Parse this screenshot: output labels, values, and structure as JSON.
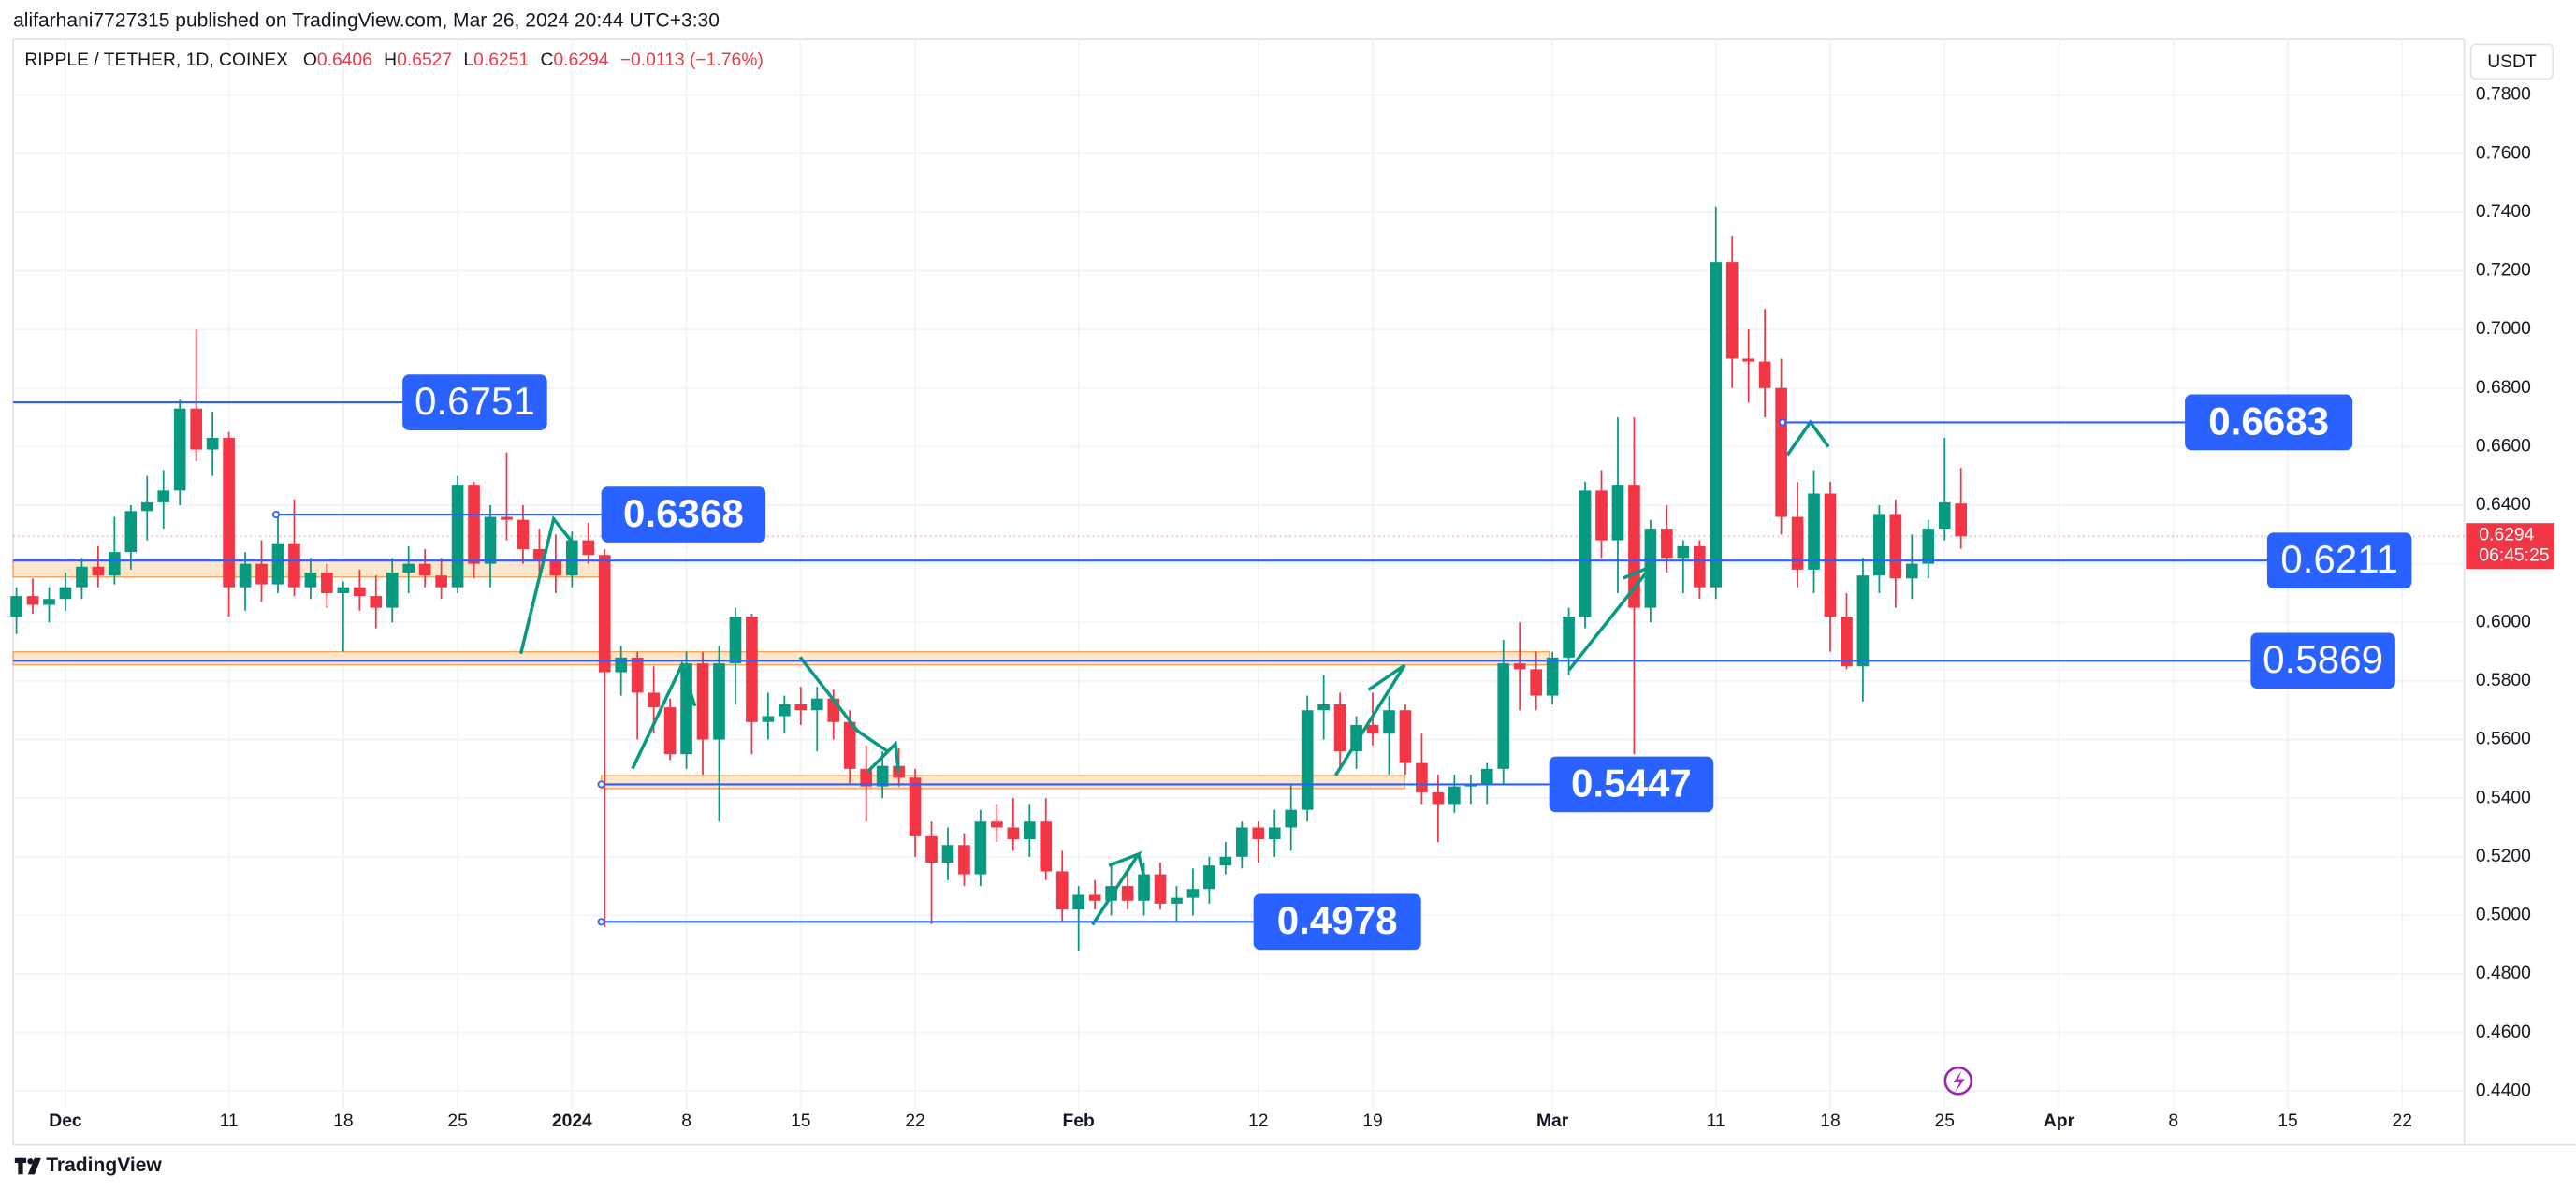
{
  "header": {
    "publisher": "alifarhani7727315 published on TradingView.com, Mar 26, 2024 20:44 UTC+3:30"
  },
  "chart_data": {
    "type": "candlestick",
    "title": "RIPPLE / TETHER, 1D, COINEX",
    "ohlc_labels": [
      "O",
      "H",
      "L",
      "C"
    ],
    "change": "−0.0113 (−1.76%)",
    "currency": "USDT",
    "countdown": "06:45:25",
    "open": [
      0.602,
      0.609,
      0.606,
      0.608,
      0.612,
      0.619,
      0.616,
      0.624,
      0.638,
      0.641,
      0.645,
      0.673,
      0.659,
      0.663,
      0.612,
      0.62,
      0.613,
      0.627,
      0.612,
      0.617,
      0.61,
      0.612,
      0.609,
      0.605,
      0.617,
      0.62,
      0.616,
      0.612,
      0.647,
      0.62,
      0.636,
      0.635,
      0.625,
      0.621,
      0.616,
      0.628,
      0.623,
      0.583,
      0.588,
      0.576,
      0.571,
      0.555,
      0.586,
      0.56,
      0.586,
      0.602,
      0.566,
      0.568,
      0.572,
      0.57,
      0.574,
      0.566,
      0.55,
      0.544,
      0.551,
      0.547,
      0.527,
      0.518,
      0.524,
      0.514,
      0.532,
      0.53,
      0.526,
      0.532,
      0.515,
      0.502,
      0.507,
      0.505,
      0.51,
      0.505,
      0.514,
      0.504,
      0.506,
      0.509,
      0.517,
      0.52,
      0.53,
      0.526,
      0.53,
      0.536,
      0.57,
      0.572,
      0.556,
      0.565,
      0.562,
      0.57,
      0.552,
      0.542,
      0.538,
      0.544,
      0.545,
      0.55,
      0.586,
      0.584,
      0.575,
      0.588,
      0.602,
      0.645,
      0.628,
      0.647,
      0.605,
      0.632,
      0.622,
      0.626,
      0.612,
      0.723,
      0.69,
      0.689,
      0.68,
      0.636,
      0.618,
      0.644,
      0.602,
      0.585,
      0.616,
      0.637,
      0.615,
      0.62,
      0.632,
      0.6406
    ],
    "high": [
      0.612,
      0.615,
      0.612,
      0.617,
      0.622,
      0.626,
      0.636,
      0.64,
      0.65,
      0.652,
      0.676,
      0.7,
      0.672,
      0.665,
      0.624,
      0.628,
      0.638,
      0.642,
      0.622,
      0.62,
      0.614,
      0.618,
      0.616,
      0.622,
      0.626,
      0.625,
      0.622,
      0.65,
      0.648,
      0.64,
      0.658,
      0.64,
      0.632,
      0.63,
      0.631,
      0.634,
      0.625,
      0.592,
      0.59,
      0.585,
      0.574,
      0.59,
      0.59,
      0.592,
      0.605,
      0.603,
      0.576,
      0.575,
      0.578,
      0.578,
      0.577,
      0.57,
      0.558,
      0.556,
      0.557,
      0.55,
      0.532,
      0.53,
      0.528,
      0.536,
      0.538,
      0.54,
      0.538,
      0.54,
      0.522,
      0.51,
      0.512,
      0.518,
      0.516,
      0.518,
      0.518,
      0.51,
      0.516,
      0.52,
      0.525,
      0.532,
      0.532,
      0.536,
      0.545,
      0.575,
      0.582,
      0.576,
      0.568,
      0.576,
      0.575,
      0.572,
      0.562,
      0.548,
      0.548,
      0.548,
      0.552,
      0.594,
      0.6,
      0.59,
      0.59,
      0.605,
      0.648,
      0.652,
      0.67,
      0.67,
      0.635,
      0.64,
      0.628,
      0.628,
      0.742,
      0.732,
      0.7,
      0.707,
      0.69,
      0.648,
      0.652,
      0.648,
      0.61,
      0.622,
      0.64,
      0.642,
      0.63,
      0.635,
      0.663,
      0.6527
    ],
    "low": [
      0.596,
      0.603,
      0.6,
      0.604,
      0.608,
      0.612,
      0.613,
      0.618,
      0.628,
      0.632,
      0.64,
      0.655,
      0.65,
      0.602,
      0.604,
      0.607,
      0.61,
      0.609,
      0.608,
      0.605,
      0.59,
      0.604,
      0.598,
      0.6,
      0.61,
      0.612,
      0.608,
      0.61,
      0.615,
      0.612,
      0.628,
      0.62,
      0.615,
      0.61,
      0.612,
      0.62,
      0.496,
      0.575,
      0.56,
      0.562,
      0.553,
      0.55,
      0.548,
      0.532,
      0.572,
      0.555,
      0.56,
      0.562,
      0.565,
      0.556,
      0.56,
      0.545,
      0.532,
      0.54,
      0.544,
      0.52,
      0.497,
      0.512,
      0.51,
      0.51,
      0.525,
      0.522,
      0.52,
      0.512,
      0.498,
      0.488,
      0.502,
      0.5,
      0.502,
      0.5,
      0.502,
      0.498,
      0.5,
      0.504,
      0.514,
      0.516,
      0.518,
      0.52,
      0.522,
      0.532,
      0.56,
      0.55,
      0.55,
      0.558,
      0.548,
      0.548,
      0.538,
      0.525,
      0.535,
      0.538,
      0.538,
      0.545,
      0.57,
      0.57,
      0.572,
      0.582,
      0.598,
      0.622,
      0.61,
      0.555,
      0.6,
      0.617,
      0.61,
      0.608,
      0.608,
      0.68,
      0.675,
      0.67,
      0.63,
      0.612,
      0.61,
      0.59,
      0.584,
      0.573,
      0.61,
      0.605,
      0.608,
      0.615,
      0.628,
      0.6251
    ],
    "close": [
      0.609,
      0.606,
      0.608,
      0.612,
      0.619,
      0.616,
      0.624,
      0.638,
      0.641,
      0.645,
      0.673,
      0.659,
      0.663,
      0.612,
      0.62,
      0.613,
      0.627,
      0.612,
      0.617,
      0.61,
      0.612,
      0.609,
      0.605,
      0.617,
      0.62,
      0.616,
      0.612,
      0.647,
      0.62,
      0.636,
      0.635,
      0.625,
      0.621,
      0.616,
      0.628,
      0.623,
      0.583,
      0.588,
      0.576,
      0.571,
      0.555,
      0.586,
      0.56,
      0.586,
      0.602,
      0.566,
      0.568,
      0.572,
      0.57,
      0.574,
      0.566,
      0.55,
      0.544,
      0.551,
      0.547,
      0.527,
      0.518,
      0.524,
      0.514,
      0.532,
      0.53,
      0.526,
      0.532,
      0.515,
      0.502,
      0.507,
      0.505,
      0.51,
      0.505,
      0.514,
      0.504,
      0.506,
      0.509,
      0.517,
      0.52,
      0.53,
      0.526,
      0.53,
      0.536,
      0.57,
      0.572,
      0.556,
      0.565,
      0.562,
      0.57,
      0.552,
      0.542,
      0.538,
      0.544,
      0.545,
      0.55,
      0.586,
      0.584,
      0.575,
      0.588,
      0.602,
      0.645,
      0.628,
      0.647,
      0.605,
      0.632,
      0.622,
      0.626,
      0.612,
      0.723,
      0.69,
      0.689,
      0.68,
      0.636,
      0.618,
      0.644,
      0.602,
      0.585,
      0.616,
      0.637,
      0.615,
      0.62,
      0.632,
      0.641,
      0.6294
    ],
    "up_color": "#089981",
    "down_color": "#f23645",
    "ylim": [
      0.434,
      0.799
    ],
    "yticks": [
      {
        "value": 0.44,
        "label": "0.4400"
      },
      {
        "value": 0.46,
        "label": "0.4600"
      },
      {
        "value": 0.48,
        "label": "0.4800"
      },
      {
        "value": 0.5,
        "label": "0.5000"
      },
      {
        "value": 0.52,
        "label": "0.5200"
      },
      {
        "value": 0.54,
        "label": "0.5400"
      },
      {
        "value": 0.56,
        "label": "0.5600"
      },
      {
        "value": 0.58,
        "label": "0.5800"
      },
      {
        "value": 0.6,
        "label": "0.6000"
      },
      {
        "value": 0.62,
        "label": "0.6200"
      },
      {
        "value": 0.64,
        "label": "0.6400"
      },
      {
        "value": 0.66,
        "label": "0.6600"
      },
      {
        "value": 0.68,
        "label": "0.6800"
      },
      {
        "value": 0.7,
        "label": "0.7000"
      },
      {
        "value": 0.72,
        "label": "0.7200"
      },
      {
        "value": 0.74,
        "label": "0.7400"
      },
      {
        "value": 0.76,
        "label": "0.7600"
      },
      {
        "value": 0.78,
        "label": "0.7800"
      }
    ],
    "xlim": [
      -0.2,
      149.8
    ],
    "xticks": [
      {
        "value": 3,
        "label": "Dec"
      },
      {
        "value": 13,
        "label": "11"
      },
      {
        "value": 20,
        "label": "18"
      },
      {
        "value": 27,
        "label": "25"
      },
      {
        "value": 34,
        "label": "2024"
      },
      {
        "value": 41,
        "label": "8"
      },
      {
        "value": 48,
        "label": "15"
      },
      {
        "value": 55,
        "label": "22"
      },
      {
        "value": 65,
        "label": "Feb"
      },
      {
        "value": 76,
        "label": "12"
      },
      {
        "value": 83,
        "label": "19"
      },
      {
        "value": 94,
        "label": "Mar"
      },
      {
        "value": 104,
        "label": "11"
      },
      {
        "value": 111,
        "label": "18"
      },
      {
        "value": 118,
        "label": "25"
      },
      {
        "value": 125,
        "label": "Apr"
      },
      {
        "value": 132,
        "label": "8"
      },
      {
        "value": 139,
        "label": "15"
      },
      {
        "value": 146,
        "label": "22"
      }
    ],
    "grid": true,
    "levels": [
      0.6751,
      0.6368,
      0.6211,
      0.5869,
      0.5447,
      0.4978,
      0.6683
    ],
    "zones": [
      [
        0.6155,
        0.6215
      ],
      [
        0.5855,
        0.59
      ],
      [
        0.5433,
        0.5477
      ]
    ]
  },
  "footer": {
    "brand": "TradingView"
  }
}
